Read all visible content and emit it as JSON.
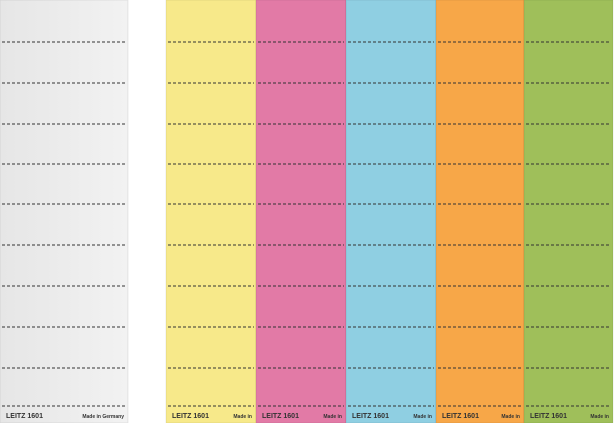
{
  "strips": [
    {
      "brand": "LEITZ 1601",
      "origin": "Made in Germany"
    },
    {
      "brand": "LEITZ 1601",
      "origin": "Made in"
    },
    {
      "brand": "LEITZ 1601",
      "origin": "Made in"
    },
    {
      "brand": "LEITZ 1601",
      "origin": "Made in"
    },
    {
      "brand": "LEITZ 1601",
      "origin": "Made in"
    },
    {
      "brand": "LEITZ 1601",
      "origin": "Made in"
    }
  ]
}
